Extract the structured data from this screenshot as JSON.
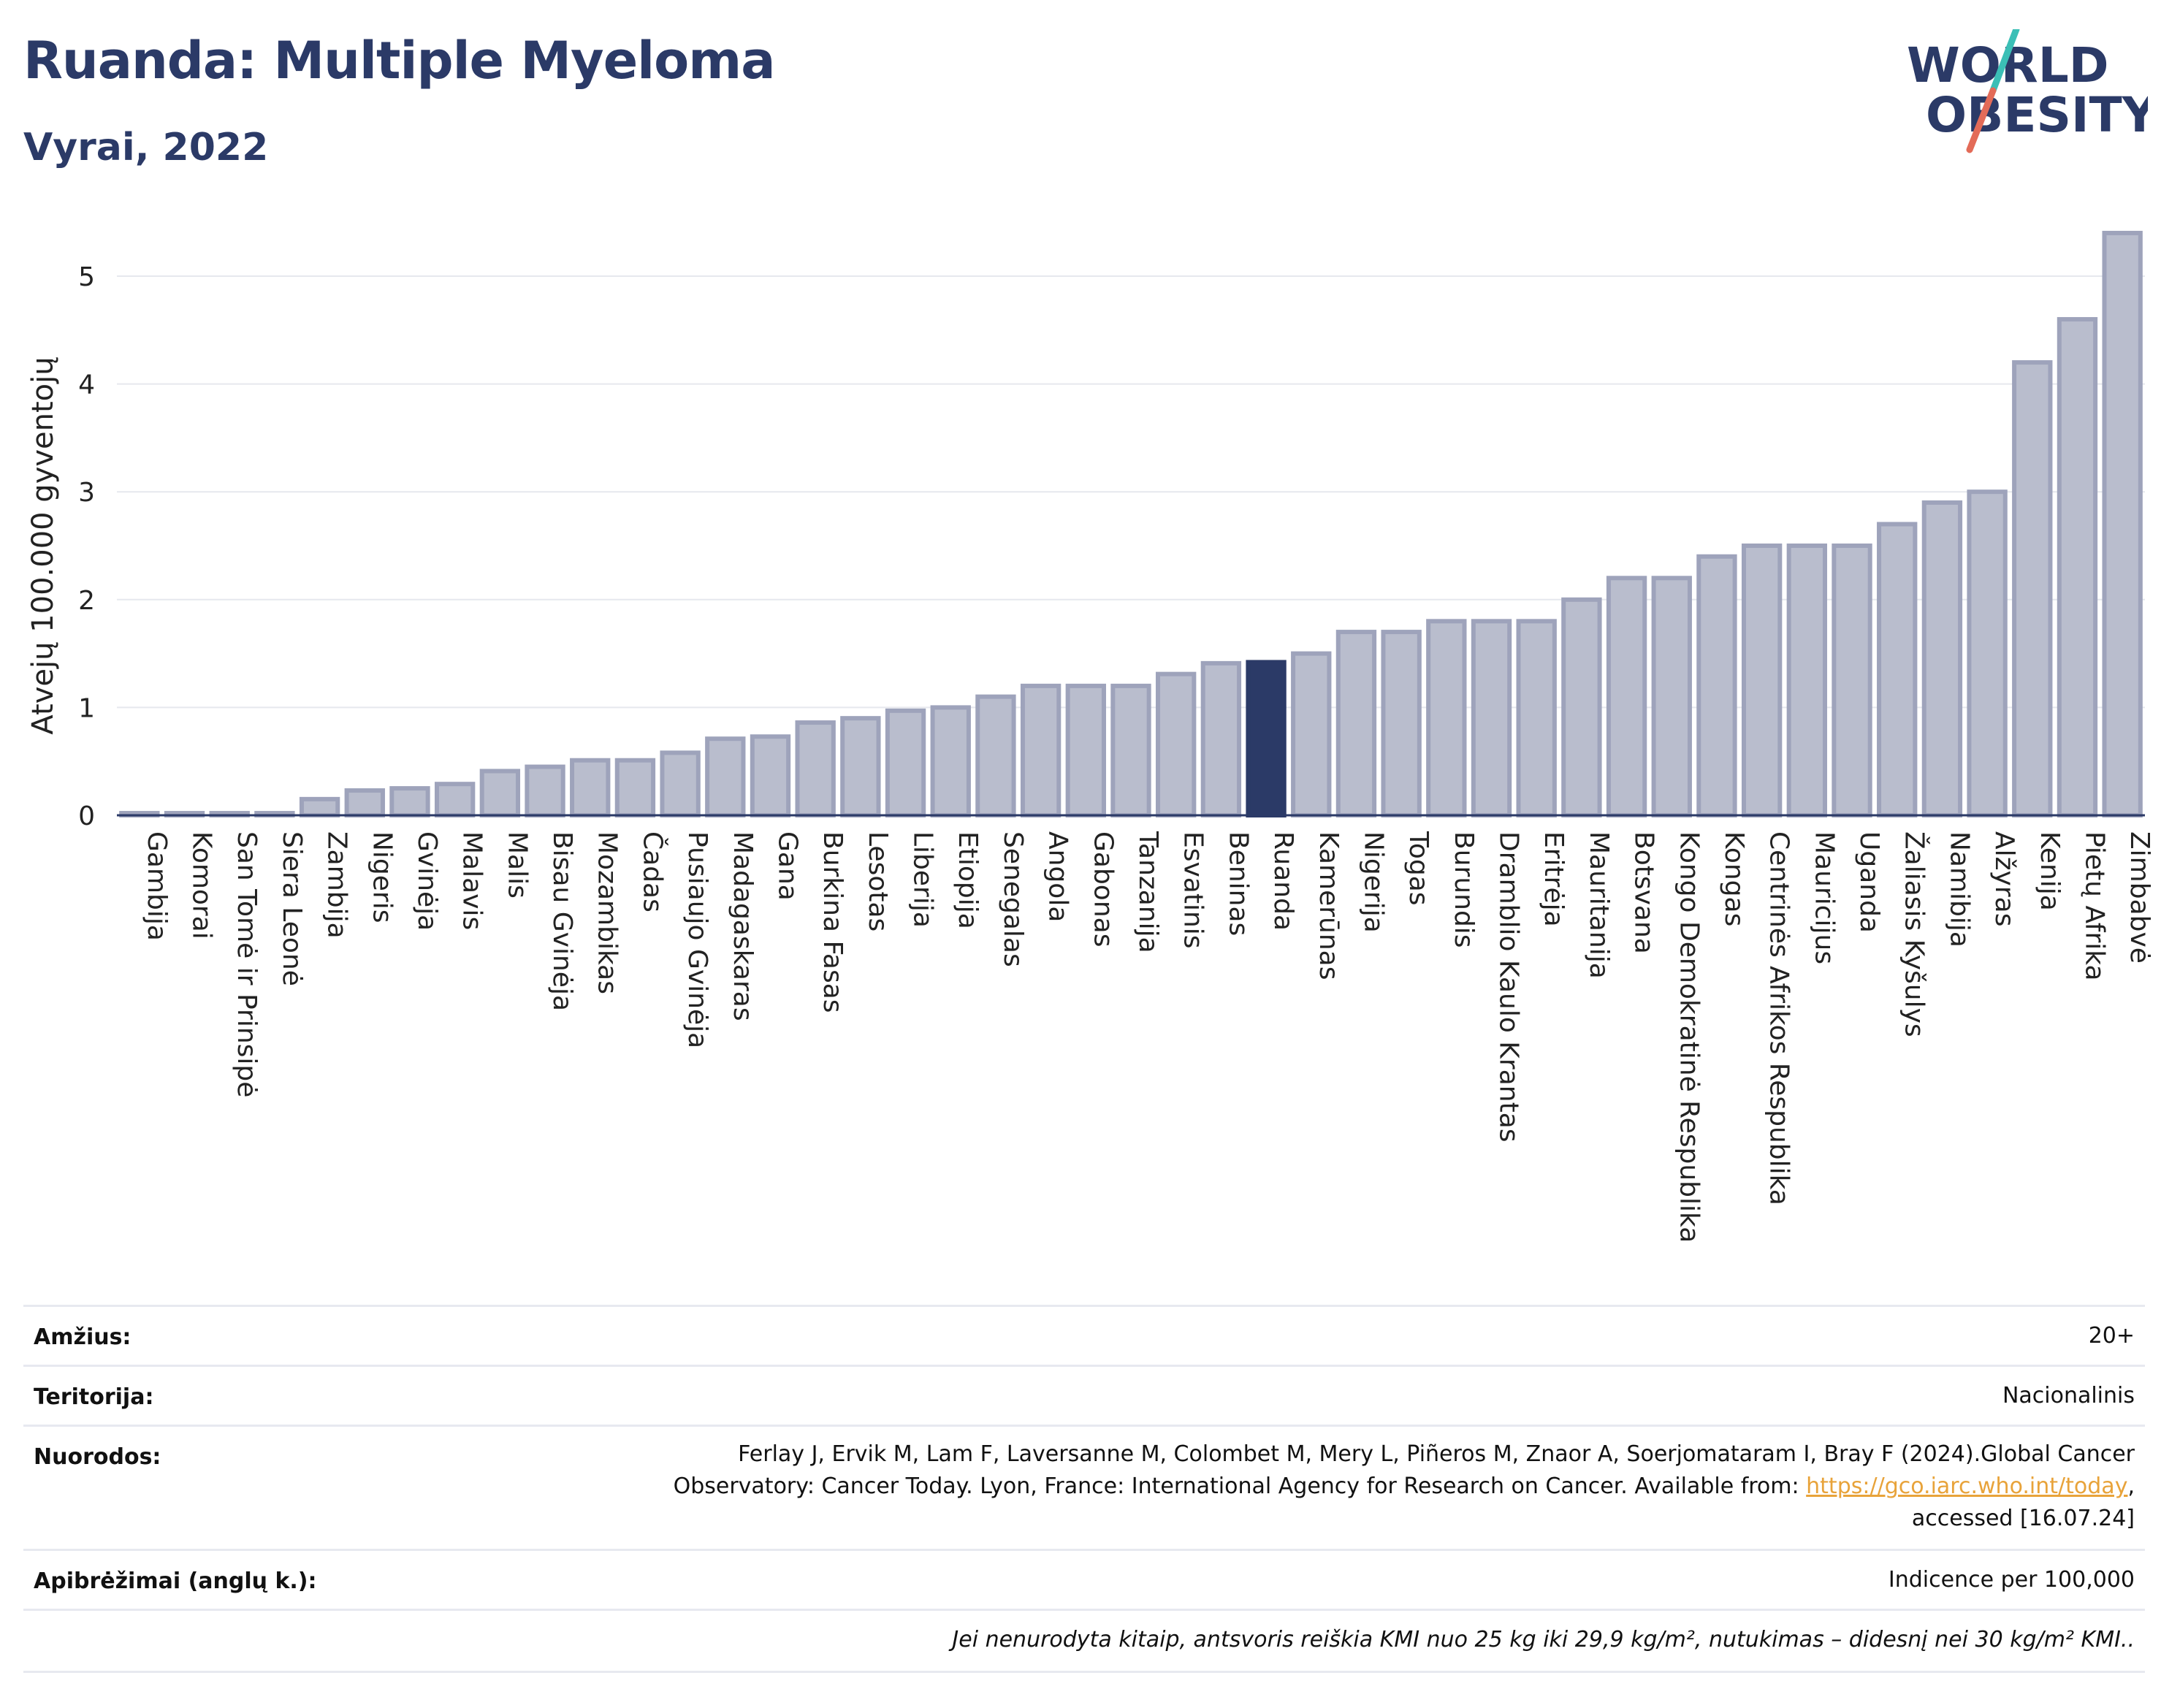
{
  "header": {
    "title": "Ruanda: Multiple Myeloma",
    "subtitle": "Vyrai, 2022",
    "logo_line1": "WORLD",
    "logo_line2": "OBESITY"
  },
  "colors": {
    "title": "#2b3a67",
    "bar_fill": "#b9bdcd",
    "bar_stroke": "#9ea3bb",
    "highlight": "#2b3a67",
    "logo_teal": "#3bbfb6",
    "logo_coral": "#e36b58"
  },
  "chart_data": {
    "type": "bar",
    "ylabel": "Atvejų 100.000 gyventojų",
    "ylim": [
      0,
      5.5
    ],
    "yticks": [
      "0",
      "1",
      "2",
      "3",
      "4",
      "5"
    ],
    "highlight": "Ruanda",
    "grid": true,
    "categories": [
      "Gambija",
      "Komorai",
      "San Tomė ir Prinsipė",
      "Siera Leonė",
      "Zambija",
      "Nigeris",
      "Gvinėja",
      "Malavis",
      "Malis",
      "Bisau Gvinėja",
      "Mozambikas",
      "Čadas",
      "Pusiaujo Gvinėja",
      "Madagaskaras",
      "Gana",
      "Burkina Fasas",
      "Lesotas",
      "Liberija",
      "Etiopija",
      "Senegalas",
      "Angola",
      "Gabonas",
      "Tanzanija",
      "Esvatinis",
      "Beninas",
      "Ruanda",
      "Kamerūnas",
      "Nigerija",
      "Togas",
      "Burundis",
      "Dramblio Kaulo Krantas",
      "Eritrėja",
      "Mauritanija",
      "Botsvana",
      "Kongo Demokratinė Respublika",
      "Kongas",
      "Centrinės Afrikos Respublika",
      "Mauricijus",
      "Uganda",
      "Žaliasis Kyšulys",
      "Namibija",
      "Alžyras",
      "Kenija",
      "Pietų Afrika",
      "Zimbabvė"
    ],
    "values": [
      0.02,
      0.02,
      0.02,
      0.02,
      0.15,
      0.23,
      0.25,
      0.29,
      0.41,
      0.45,
      0.51,
      0.51,
      0.58,
      0.71,
      0.73,
      0.86,
      0.9,
      0.97,
      1.0,
      1.1,
      1.2,
      1.2,
      1.2,
      1.31,
      1.41,
      1.42,
      1.5,
      1.7,
      1.7,
      1.8,
      1.8,
      1.8,
      2.0,
      2.2,
      2.2,
      2.4,
      2.5,
      2.5,
      2.5,
      2.7,
      2.9,
      3.0,
      4.2,
      4.6,
      5.4
    ]
  },
  "info": {
    "age_label": "Amžius:",
    "age_value": "20+",
    "territory_label": "Teritorija:",
    "territory_value": "Nacionalinis",
    "references_label": "Nuorodos:",
    "references_line1": "Ferlay J, Ervik M, Lam F, Laversanne M, Colombet M, Mery L, Piñeros M, Znaor A, Soerjomataram I, Bray F (2024).Global Cancer",
    "references_line2_text": "Observatory: Cancer Today. Lyon, France: International Agency for Research on Cancer. Available from: ",
    "references_link": "https://gco.iarc.who.int/today",
    "references_line2_end": ",",
    "references_line3": "accessed [16.07.24]",
    "definitions_label": "Apibrėžimai (anglų k.):",
    "definitions_value": "Indicence per 100,000",
    "footnote": "Jei nenurodyta kitaip, antsvoris reiškia KMI nuo 25 kg iki 29,9 kg/m², nutukimas – didesnį nei 30 kg/m² KMI.."
  }
}
